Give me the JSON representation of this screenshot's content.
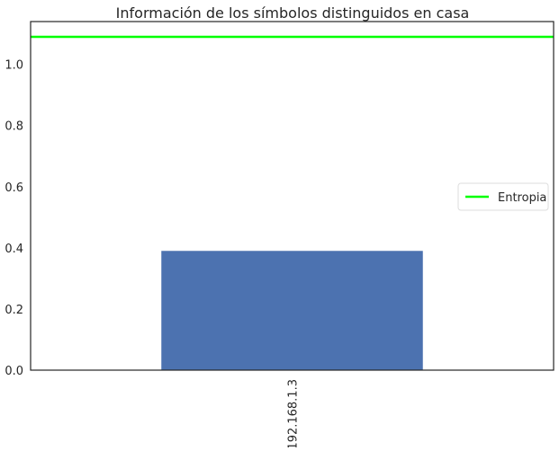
{
  "chart_data": {
    "type": "bar",
    "title": "Información de los símbolos distinguidos en casa",
    "xlabel": "",
    "ylabel": "",
    "categories": [
      "192.168.1.3"
    ],
    "series": [
      {
        "values": [
          0.39
        ]
      }
    ],
    "reference_lines": [
      {
        "name": "Entropia",
        "y": 1.09,
        "color": "#00ff00"
      }
    ],
    "ylim": [
      0,
      1.14
    ],
    "yticks": [
      "0.0",
      "0.2",
      "0.4",
      "0.6",
      "0.8",
      "1.0"
    ],
    "grid": false,
    "legend": {
      "position": "center-right",
      "entries": [
        "Entropia"
      ]
    },
    "colors": {
      "bar": "#4c72b0",
      "axes": "#262626"
    }
  }
}
